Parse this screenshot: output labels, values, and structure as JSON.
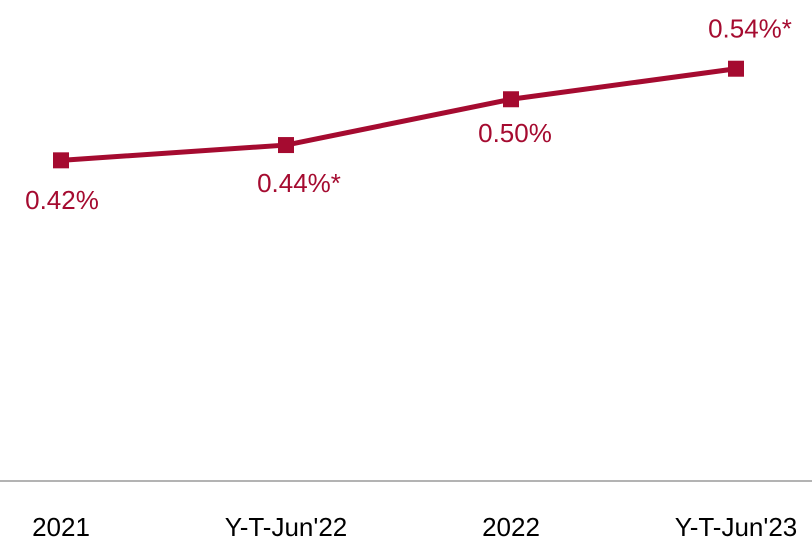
{
  "chart_data": {
    "type": "line",
    "categories": [
      "2021",
      "Y-T-Jun'22",
      "2022",
      "Y-T-Jun'23"
    ],
    "series": [
      {
        "color": "#a50b30",
        "values": [
          0.42,
          0.44,
          0.5,
          0.54
        ],
        "value_labels": [
          "0.42%",
          "0.44%*",
          "0.50%",
          "0.54%*"
        ]
      }
    ],
    "ylim": [
      0,
      0.63
    ]
  }
}
